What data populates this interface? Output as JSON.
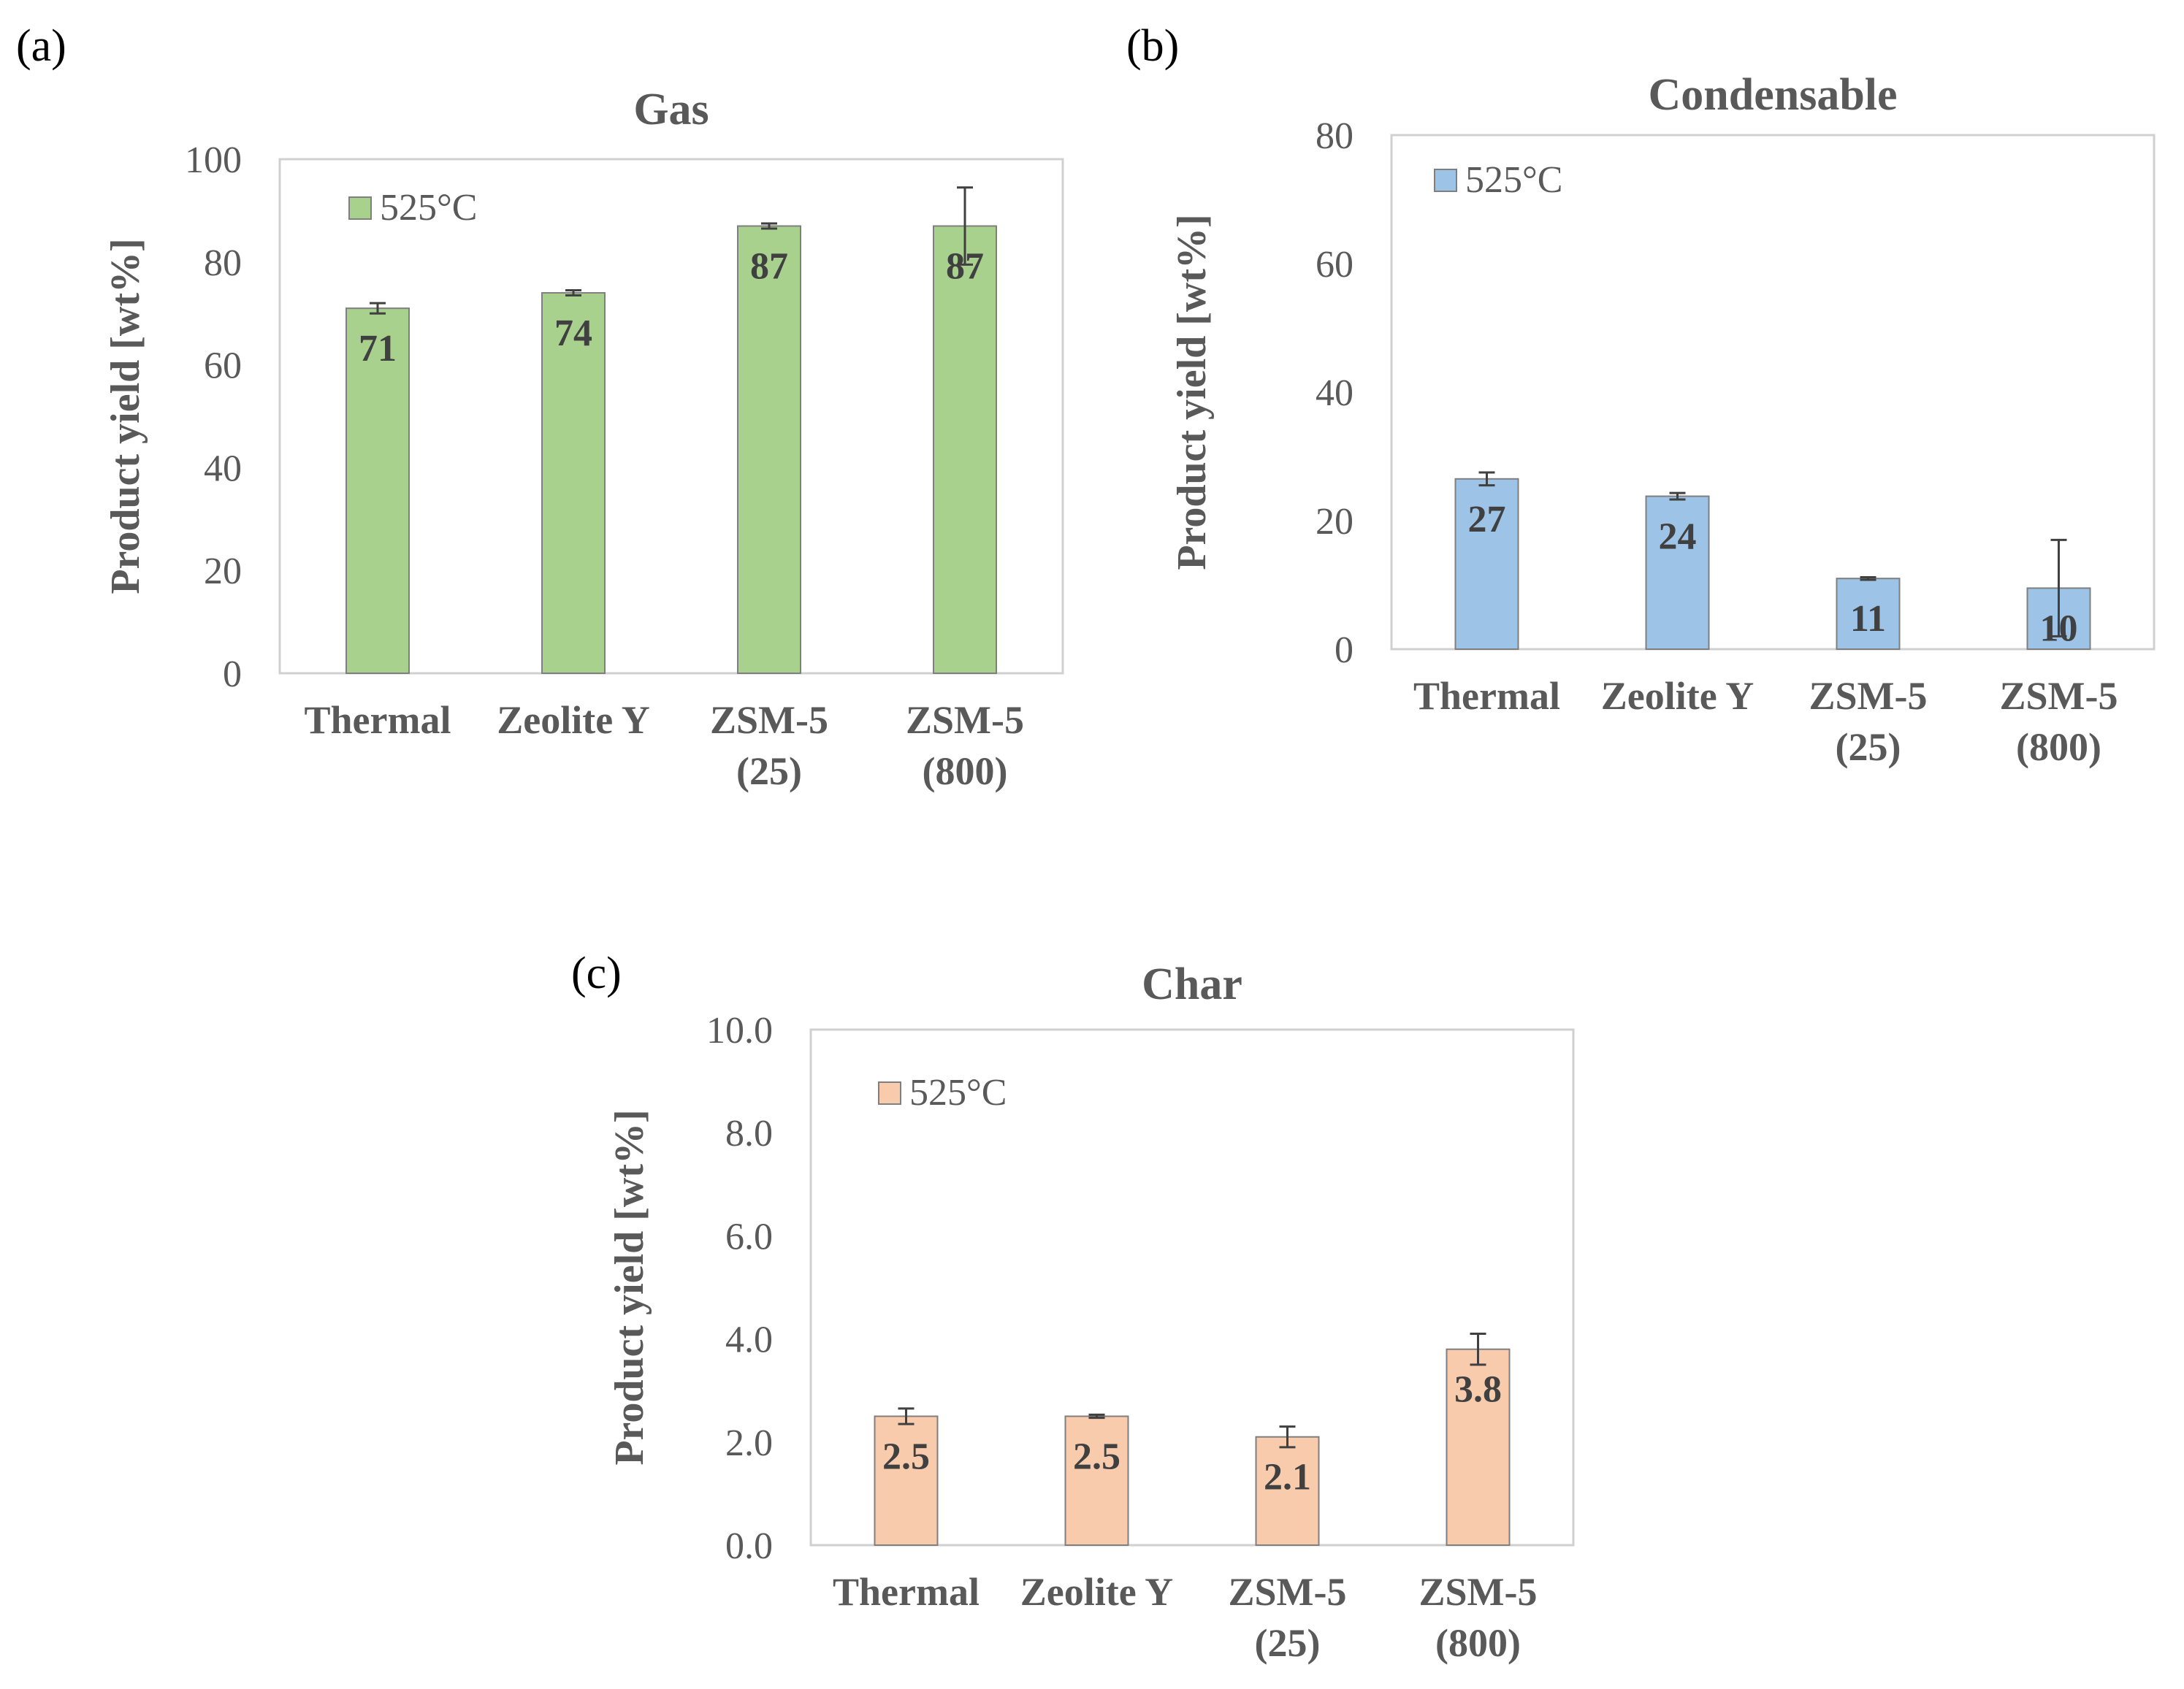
{
  "panels": [
    {
      "letter": "(a)"
    },
    {
      "letter": "(b)"
    },
    {
      "letter": "(c)"
    }
  ],
  "chart_data": [
    {
      "type": "bar",
      "title": "Gas",
      "ylabel": "Product yield [wt%]",
      "xlabel": "",
      "categories": [
        [
          "Thermal"
        ],
        [
          "Zeolite Y"
        ],
        [
          "ZSM-5",
          "(25)"
        ],
        [
          "ZSM-5",
          "(800)"
        ]
      ],
      "series": [
        {
          "name": "525°C",
          "values": [
            71,
            74,
            87,
            87
          ],
          "errors": [
            1,
            0.5,
            0.5,
            7.5
          ],
          "data_labels": [
            "71",
            "74",
            "87",
            "87"
          ]
        }
      ],
      "ylim": [
        0,
        100
      ],
      "yticks": [
        0,
        20,
        40,
        60,
        80,
        100
      ],
      "ytick_labels": [
        "0",
        "20",
        "40",
        "60",
        "80",
        "100"
      ],
      "grid": false,
      "legend": "top-left",
      "color": "#a9d18e"
    },
    {
      "type": "bar",
      "title": "Condensable",
      "ylabel": "Product yield [wt%]",
      "xlabel": "",
      "categories": [
        [
          "Thermal"
        ],
        [
          "Zeolite Y"
        ],
        [
          "ZSM-5",
          "(25)"
        ],
        [
          "ZSM-5",
          "(800)"
        ]
      ],
      "series": [
        {
          "name": "525°C",
          "values": [
            26.5,
            23.8,
            11,
            9.5
          ],
          "errors": [
            1,
            0.5,
            0.2,
            7.5
          ],
          "data_labels": [
            "27",
            "24",
            "11",
            "10"
          ]
        }
      ],
      "ylim": [
        0,
        80
      ],
      "yticks": [
        0,
        20,
        40,
        60,
        80
      ],
      "ytick_labels": [
        "0",
        "20",
        "40",
        "60",
        "80"
      ],
      "grid": false,
      "legend": "top-left",
      "color": "#9dc3e6"
    },
    {
      "type": "bar",
      "title": "Char",
      "ylabel": "Product yield [wt%]",
      "xlabel": "",
      "categories": [
        [
          "Thermal"
        ],
        [
          "Zeolite Y"
        ],
        [
          "ZSM-5",
          "(25)"
        ],
        [
          "ZSM-5",
          "(800)"
        ]
      ],
      "series": [
        {
          "name": "525°C",
          "values": [
            2.5,
            2.5,
            2.1,
            3.8
          ],
          "errors": [
            0.15,
            0.03,
            0.2,
            0.3
          ],
          "data_labels": [
            "2.5",
            "2.5",
            "2.1",
            "3.8"
          ]
        }
      ],
      "ylim": [
        0,
        10
      ],
      "yticks": [
        0,
        2,
        4,
        6,
        8,
        10
      ],
      "ytick_labels": [
        "0.0",
        "2.0",
        "4.0",
        "6.0",
        "8.0",
        "10.0"
      ],
      "grid": false,
      "legend": "top-left",
      "color": "#f8cbad"
    }
  ]
}
